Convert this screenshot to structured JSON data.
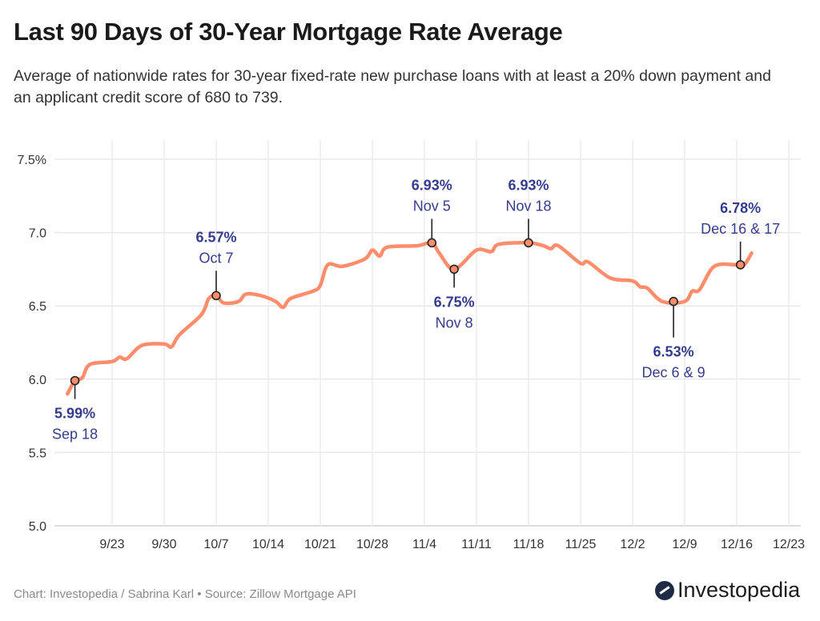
{
  "title": "Last 90 Days of 30-Year Mortgage Rate Average",
  "subtitle": "Average of nationwide rates for 30-year fixed-rate new purchase loans with at least a 20% down payment and an applicant credit score of 680 to 739.",
  "footer": "Chart: Investopedia / Sabrina Karl • Source: Zillow Mortgage API",
  "logo_text": "Investopedia",
  "chart_data": {
    "type": "line",
    "title": "",
    "xlabel": "",
    "ylabel": "",
    "ylim": [
      5.0,
      7.5
    ],
    "y_ticks": [
      "5.0",
      "5.5",
      "6.0",
      "6.5",
      "7.0",
      "7.5%"
    ],
    "y_tick_values": [
      5.0,
      5.5,
      6.0,
      6.5,
      7.0,
      7.5
    ],
    "x_ticks": [
      "9/23",
      "9/30",
      "10/7",
      "10/14",
      "10/21",
      "10/28",
      "11/4",
      "11/11",
      "11/18",
      "11/25",
      "12/2",
      "12/9",
      "12/16",
      "12/23"
    ],
    "grid": true,
    "line_color": "#ff8c6b",
    "label_color": "#353c8c",
    "series": [
      {
        "x": [
          "9/17",
          "9/18",
          "9/19",
          "9/20",
          "9/23",
          "9/24",
          "9/25",
          "9/27",
          "9/30",
          "10/1",
          "10/2",
          "10/5",
          "10/6",
          "10/7",
          "10/8",
          "10/10",
          "10/11",
          "10/13",
          "10/15",
          "10/16",
          "10/17",
          "10/20",
          "10/21",
          "10/22",
          "10/24",
          "10/27",
          "10/28",
          "10/29",
          "10/30",
          "11/3",
          "11/5",
          "11/6",
          "11/8",
          "11/11",
          "11/13",
          "11/14",
          "11/18",
          "11/20",
          "11/21",
          "11/22",
          "11/25",
          "11/26",
          "11/29",
          "12/2",
          "12/3",
          "12/4",
          "12/6",
          "12/9",
          "12/10",
          "12/11",
          "12/13",
          "12/16",
          "12/17",
          "12/18"
        ],
        "values": [
          5.9,
          5.99,
          6.01,
          6.1,
          6.12,
          6.15,
          6.14,
          6.23,
          6.24,
          6.22,
          6.3,
          6.44,
          6.55,
          6.57,
          6.52,
          6.53,
          6.58,
          6.57,
          6.53,
          6.49,
          6.55,
          6.6,
          6.64,
          6.78,
          6.77,
          6.82,
          6.88,
          6.84,
          6.9,
          6.91,
          6.93,
          6.86,
          6.75,
          6.88,
          6.87,
          6.92,
          6.93,
          6.91,
          6.89,
          6.91,
          6.79,
          6.8,
          6.69,
          6.67,
          6.63,
          6.62,
          6.53,
          6.53,
          6.6,
          6.61,
          6.77,
          6.78,
          6.78,
          6.86
        ]
      }
    ],
    "annotations": [
      {
        "value_label": "5.99%",
        "date_label": "Sep 18",
        "dates": [
          "9/18"
        ],
        "value": 5.99,
        "position": "below"
      },
      {
        "value_label": "6.57%",
        "date_label": "Oct 7",
        "dates": [
          "10/7"
        ],
        "value": 6.57,
        "position": "above"
      },
      {
        "value_label": "6.93%",
        "date_label": "Nov 5",
        "dates": [
          "11/5"
        ],
        "value": 6.93,
        "position": "above"
      },
      {
        "value_label": "6.75%",
        "date_label": "Nov 8",
        "dates": [
          "11/8"
        ],
        "value": 6.75,
        "position": "below"
      },
      {
        "value_label": "6.93%",
        "date_label": "Nov 18",
        "dates": [
          "11/18"
        ],
        "value": 6.93,
        "position": "above"
      },
      {
        "value_label": "6.53%",
        "date_label": "Dec 6 & 9",
        "dates": [
          "12/6",
          "12/9"
        ],
        "value": 6.53,
        "position": "below"
      },
      {
        "value_label": "6.78%",
        "date_label": "Dec 16 & 17",
        "dates": [
          "12/16",
          "12/17"
        ],
        "value": 6.78,
        "position": "above"
      }
    ]
  }
}
